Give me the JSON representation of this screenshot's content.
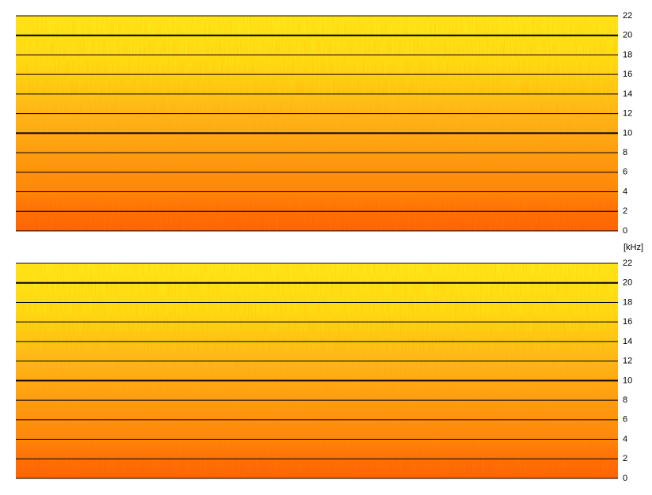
{
  "chart_data": [
    {
      "type": "spectrogram",
      "ylim": [
        0,
        22
      ],
      "yticks": [
        0,
        2,
        4,
        6,
        8,
        10,
        12,
        14,
        16,
        18,
        20,
        22
      ],
      "ylabel": "[kHz]"
    },
    {
      "type": "spectrogram",
      "ylim": [
        0,
        22
      ],
      "yticks": [
        0,
        2,
        4,
        6,
        8,
        10,
        12,
        14,
        16,
        18,
        20,
        22
      ]
    }
  ]
}
